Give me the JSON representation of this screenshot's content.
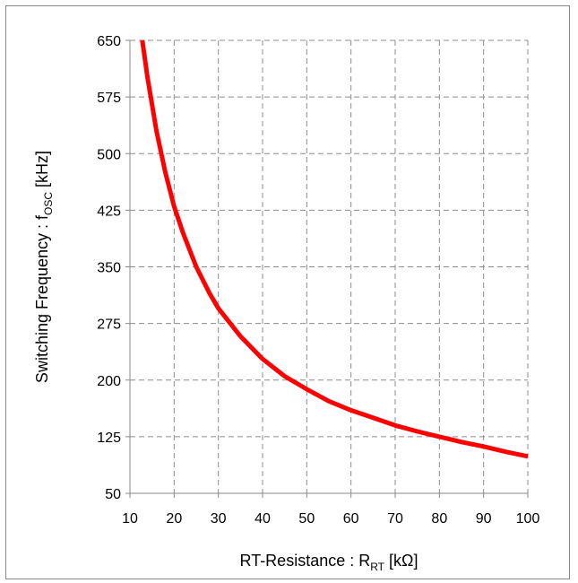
{
  "chart_data": {
    "type": "line",
    "title": "",
    "xlabel": {
      "main": "RT-Resistance : R",
      "sub": "RT",
      "unit": " [kΩ]"
    },
    "ylabel": {
      "main": "Switching Frequency : f",
      "sub": "OSC",
      "unit": " [kHz]"
    },
    "xlim": [
      10,
      100
    ],
    "ylim": [
      50,
      650
    ],
    "xticks": [
      10,
      20,
      30,
      40,
      50,
      60,
      70,
      80,
      90,
      100
    ],
    "yticks": [
      50,
      125,
      200,
      275,
      350,
      425,
      500,
      575,
      650
    ],
    "grid": true,
    "series": [
      {
        "color": "#ff0000",
        "x": [
          12.8,
          14,
          16,
          18,
          20,
          22,
          25,
          28,
          30,
          35,
          40,
          45,
          50,
          55,
          60,
          65,
          70,
          75,
          80,
          85,
          90,
          95,
          100
        ],
        "y": [
          650,
          600,
          530,
          475,
          430,
          395,
          350,
          315,
          295,
          258,
          228,
          205,
          188,
          172,
          160,
          150,
          140,
          132,
          125,
          118,
          112,
          105,
          99
        ]
      }
    ]
  }
}
